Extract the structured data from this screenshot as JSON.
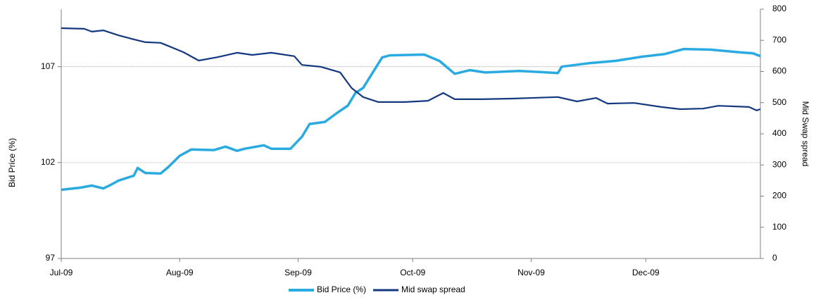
{
  "chart_data": {
    "type": "line",
    "y_label": "Bid Price (%)",
    "y2_label": "Mid Swap spread",
    "xlim": [
      0,
      183
    ],
    "xticks": [
      {
        "value": 0,
        "label": "Jul-09"
      },
      {
        "value": 31,
        "label": "Aug-09"
      },
      {
        "value": 62,
        "label": "Sep-09"
      },
      {
        "value": 92,
        "label": "Oct-09"
      },
      {
        "value": 123,
        "label": "Nov-09"
      },
      {
        "value": 153,
        "label": "Dec-09"
      }
    ],
    "ylim": [
      97,
      110
    ],
    "yticks": [
      97,
      102,
      107
    ],
    "y2lim": [
      0,
      800
    ],
    "y2ticks": [
      0,
      100,
      200,
      300,
      400,
      500,
      600,
      700,
      800
    ],
    "grid": true,
    "legend": "bottom",
    "series": [
      {
        "name": "Bid Price (%)",
        "color": "#29abe2",
        "axis": "y",
        "x": [
          0,
          5,
          8,
          11,
          13,
          15,
          19,
          20,
          22,
          26,
          28,
          31,
          34,
          40,
          43,
          46,
          48,
          53,
          55,
          60,
          63,
          65,
          69,
          72,
          75,
          77,
          79,
          84,
          86,
          95,
          99,
          103,
          107,
          111,
          120,
          130,
          131,
          138,
          145,
          152,
          158,
          163,
          170,
          178,
          181,
          183
        ],
        "values": [
          100.58,
          100.69,
          100.8,
          100.65,
          100.84,
          101.06,
          101.32,
          101.72,
          101.46,
          101.43,
          101.76,
          102.35,
          102.68,
          102.65,
          102.83,
          102.61,
          102.72,
          102.9,
          102.72,
          102.72,
          103.35,
          104.01,
          104.12,
          104.56,
          104.97,
          105.63,
          105.89,
          107.48,
          107.59,
          107.63,
          107.3,
          106.63,
          106.82,
          106.7,
          106.78,
          106.67,
          107.0,
          107.18,
          107.3,
          107.52,
          107.66,
          107.92,
          107.89,
          107.74,
          107.7,
          107.55
        ]
      },
      {
        "name": "Mid swap spread",
        "color": "#14387f",
        "axis": "y2",
        "x": [
          0,
          6,
          8,
          11,
          15,
          19,
          22,
          26,
          28,
          32,
          36,
          41,
          46,
          50,
          55,
          61,
          63,
          68,
          73,
          76,
          79,
          83,
          90,
          96,
          100,
          103,
          110,
          118,
          130,
          135,
          140,
          143,
          150,
          157,
          162,
          168,
          172,
          180,
          182,
          183
        ],
        "values": [
          739,
          737,
          728,
          732,
          716,
          703,
          694,
          692,
          682,
          662,
          635,
          646,
          660,
          653,
          660,
          649,
          621,
          615,
          597,
          547,
          518,
          502,
          502,
          506,
          531,
          511,
          511,
          513,
          518,
          504,
          515,
          497,
          499,
          486,
          479,
          481,
          490,
          486,
          475,
          479
        ]
      }
    ]
  }
}
